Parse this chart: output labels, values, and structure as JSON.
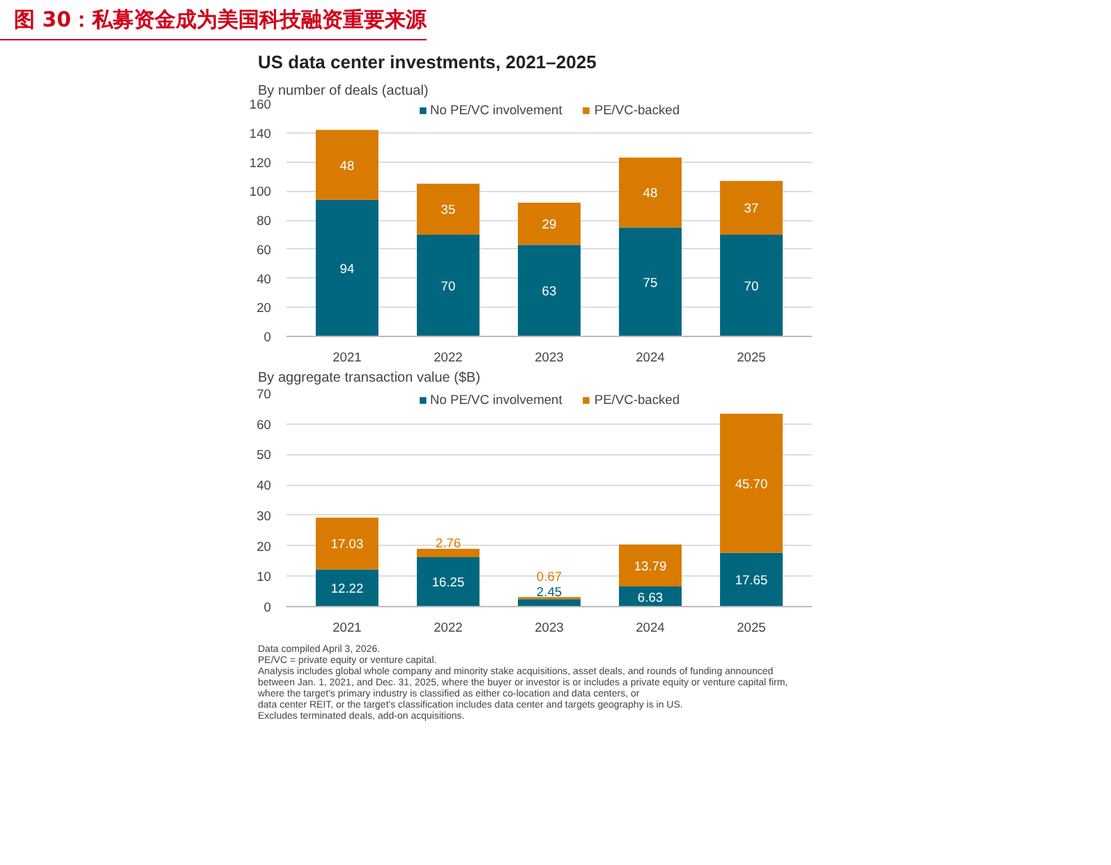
{
  "chart_data": [
    {
      "type": "bar",
      "stacked": true,
      "title": "图 30：私募资金成为美国科技融资重要来源",
      "subtitle": "US data center investments, 2021–2025",
      "annotations": [
        "By number of deals (actual)"
      ],
      "categories": [
        "2021",
        "2022",
        "2023",
        "2024",
        "2025"
      ],
      "series": [
        {
          "name": "No PE/VC involvement",
          "color": "#00677f",
          "values": [
            94,
            70,
            63,
            75,
            70
          ]
        },
        {
          "name": "PE/VC-backed",
          "color": "#d97b00",
          "values": [
            48,
            35,
            29,
            48,
            37
          ]
        }
      ],
      "ylim": [
        0,
        160
      ],
      "yticks": [
        0,
        20,
        40,
        60,
        80,
        100,
        120,
        140,
        160
      ],
      "grid": "y",
      "legend": "top",
      "data_labels": true
    },
    {
      "type": "bar",
      "stacked": true,
      "title": "By aggregate transaction value ($B)",
      "categories": [
        "2021",
        "2022",
        "2023",
        "2024",
        "2025"
      ],
      "series": [
        {
          "name": "No PE/VC involvement",
          "color": "#00677f",
          "values": [
            12.22,
            16.25,
            2.45,
            6.63,
            17.65
          ],
          "value_labels": [
            "12.22",
            "16.25",
            "2.45",
            "6.63",
            "17.65"
          ]
        },
        {
          "name": "PE/VC-backed",
          "color": "#d97b00",
          "values": [
            17.03,
            2.76,
            0.67,
            13.79,
            45.7
          ],
          "value_labels": [
            "17.03",
            "2.76",
            "0.67",
            "13.79",
            "45.70"
          ]
        }
      ],
      "ylim": [
        0,
        70
      ],
      "yticks": [
        0,
        10,
        20,
        30,
        40,
        50,
        60,
        70
      ],
      "grid": "y",
      "legend": "top",
      "annotations": [
        "Data compiled April 3, 2026.",
        "PE/VC = private equity or venture capital.",
        "Analysis includes global whole company and minority stake acquisitions, asset deals, and rounds of funding announced",
        "between Jan. 1, 2021, and Dec. 31, 2025, where the buyer or investor is or includes a private equity or venture capital firm,",
        "where the target's primary industry is classified as either co-location and data centers, or",
        "data center REIT, or the target's classification includes data center and targets geography is in US.",
        "Excludes terminated deals, add-on acquisitions."
      ]
    }
  ]
}
